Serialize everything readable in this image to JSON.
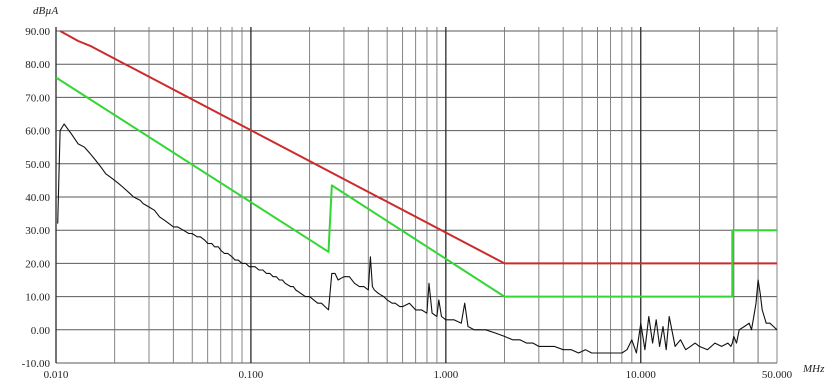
{
  "chart_data": {
    "type": "line",
    "x_scale": "log",
    "xlim": [
      0.01,
      50
    ],
    "ylim": [
      -10,
      90
    ],
    "grid": true,
    "y_unit": "dBµA",
    "x_unit": "MHz",
    "y_ticks": [
      "90.00",
      "80.00",
      "70.00",
      "60.00",
      "50.00",
      "40.00",
      "30.00",
      "20.00",
      "10.00",
      "0.00",
      "-10.00"
    ],
    "y_tick_values": [
      90,
      80,
      70,
      60,
      50,
      40,
      30,
      20,
      10,
      0,
      -10
    ],
    "x_ticks": [
      "0.010",
      "0.100",
      "1.000",
      "10.000",
      "50.000"
    ],
    "x_tick_values": [
      0.01,
      0.1,
      1,
      10,
      50
    ],
    "series": [
      {
        "color": "#cc2b2b",
        "x": [
          0.0105,
          0.013,
          0.015,
          2.0,
          50
        ],
        "y": [
          90,
          87,
          85.5,
          20,
          20
        ]
      },
      {
        "color": "#33d633",
        "x": [
          0.01,
          0.25,
          0.25,
          0.26,
          2.0,
          29.5,
          29.5,
          50
        ],
        "y": [
          76,
          23.5,
          23.5,
          43.5,
          10,
          10,
          30,
          30
        ]
      },
      {
        "color": "#111111",
        "x": [
          0.0102,
          0.0105,
          0.011,
          0.012,
          0.013,
          0.014,
          0.015,
          0.016,
          0.017,
          0.018,
          0.019,
          0.02,
          0.021,
          0.022,
          0.024,
          0.025,
          0.027,
          0.028,
          0.03,
          0.032,
          0.034,
          0.036,
          0.038,
          0.04,
          0.042,
          0.045,
          0.048,
          0.05,
          0.053,
          0.055,
          0.058,
          0.06,
          0.063,
          0.065,
          0.068,
          0.07,
          0.073,
          0.076,
          0.08,
          0.083,
          0.086,
          0.09,
          0.094,
          0.098,
          0.1,
          0.105,
          0.11,
          0.115,
          0.12,
          0.125,
          0.13,
          0.135,
          0.14,
          0.145,
          0.15,
          0.16,
          0.165,
          0.17,
          0.18,
          0.19,
          0.2,
          0.21,
          0.22,
          0.23,
          0.24,
          0.25,
          0.26,
          0.27,
          0.28,
          0.3,
          0.32,
          0.34,
          0.36,
          0.38,
          0.4,
          0.41,
          0.42,
          0.43,
          0.45,
          0.48,
          0.5,
          0.53,
          0.55,
          0.58,
          0.6,
          0.65,
          0.7,
          0.75,
          0.8,
          0.82,
          0.85,
          0.9,
          0.92,
          0.95,
          1.0,
          1.1,
          1.2,
          1.25,
          1.3,
          1.4,
          1.5,
          1.6,
          1.8,
          2.0,
          2.2,
          2.4,
          2.6,
          2.8,
          3.0,
          3.3,
          3.6,
          4.0,
          4.4,
          4.8,
          5.2,
          5.6,
          6.0,
          6.5,
          7.0,
          7.5,
          8.0,
          8.5,
          9.0,
          9.5,
          10.0,
          10.5,
          11.0,
          11.5,
          12.0,
          12.5,
          13.0,
          13.5,
          14.0,
          15.0,
          16.0,
          17.0,
          18.0,
          19.0,
          20.0,
          22.0,
          24.0,
          26.0,
          28.0,
          29.0,
          29.5,
          30.0,
          31.0,
          32.0,
          34.0,
          36.0,
          37.0,
          38.0,
          39.0,
          40.0,
          41.0,
          42.0,
          43.0,
          44.0,
          46.0,
          48.0,
          50.0
        ],
        "y": [
          32,
          60,
          62,
          59,
          56,
          55,
          53,
          51,
          49,
          47,
          46,
          45,
          44,
          43,
          41,
          40,
          39,
          38,
          37,
          36,
          34,
          33,
          32,
          31,
          31,
          30,
          29,
          29,
          28,
          28,
          27,
          26,
          26,
          25,
          25,
          24,
          23,
          23,
          22,
          21,
          21,
          20,
          20,
          19,
          19,
          19,
          18,
          18,
          17,
          17,
          16,
          16,
          15,
          15,
          14,
          13,
          13,
          12,
          11,
          10,
          10,
          9,
          8,
          8,
          7,
          6,
          17,
          17,
          15,
          16,
          16,
          14,
          13,
          13,
          12,
          22,
          13,
          12,
          11,
          10,
          9,
          8,
          8,
          7,
          7,
          8,
          6,
          6,
          5,
          14,
          5,
          4,
          9,
          4,
          3,
          3,
          2,
          8,
          1,
          0,
          0,
          0,
          -1,
          -2,
          -3,
          -3,
          -4,
          -4,
          -5,
          -5,
          -5,
          -6,
          -6,
          -7,
          -6,
          -7,
          -7,
          -7,
          -7,
          -7,
          -7,
          -6,
          -3,
          -7,
          2,
          -6,
          4,
          -4,
          3,
          -5,
          1,
          -6,
          4,
          -5,
          -3,
          -6,
          -5,
          -4,
          -5,
          -6,
          -4,
          -5,
          -4,
          -5,
          -4,
          -2,
          -4,
          0,
          1,
          2,
          0,
          4,
          8,
          15,
          11,
          6,
          4,
          2,
          2,
          1,
          0
        ]
      }
    ]
  }
}
